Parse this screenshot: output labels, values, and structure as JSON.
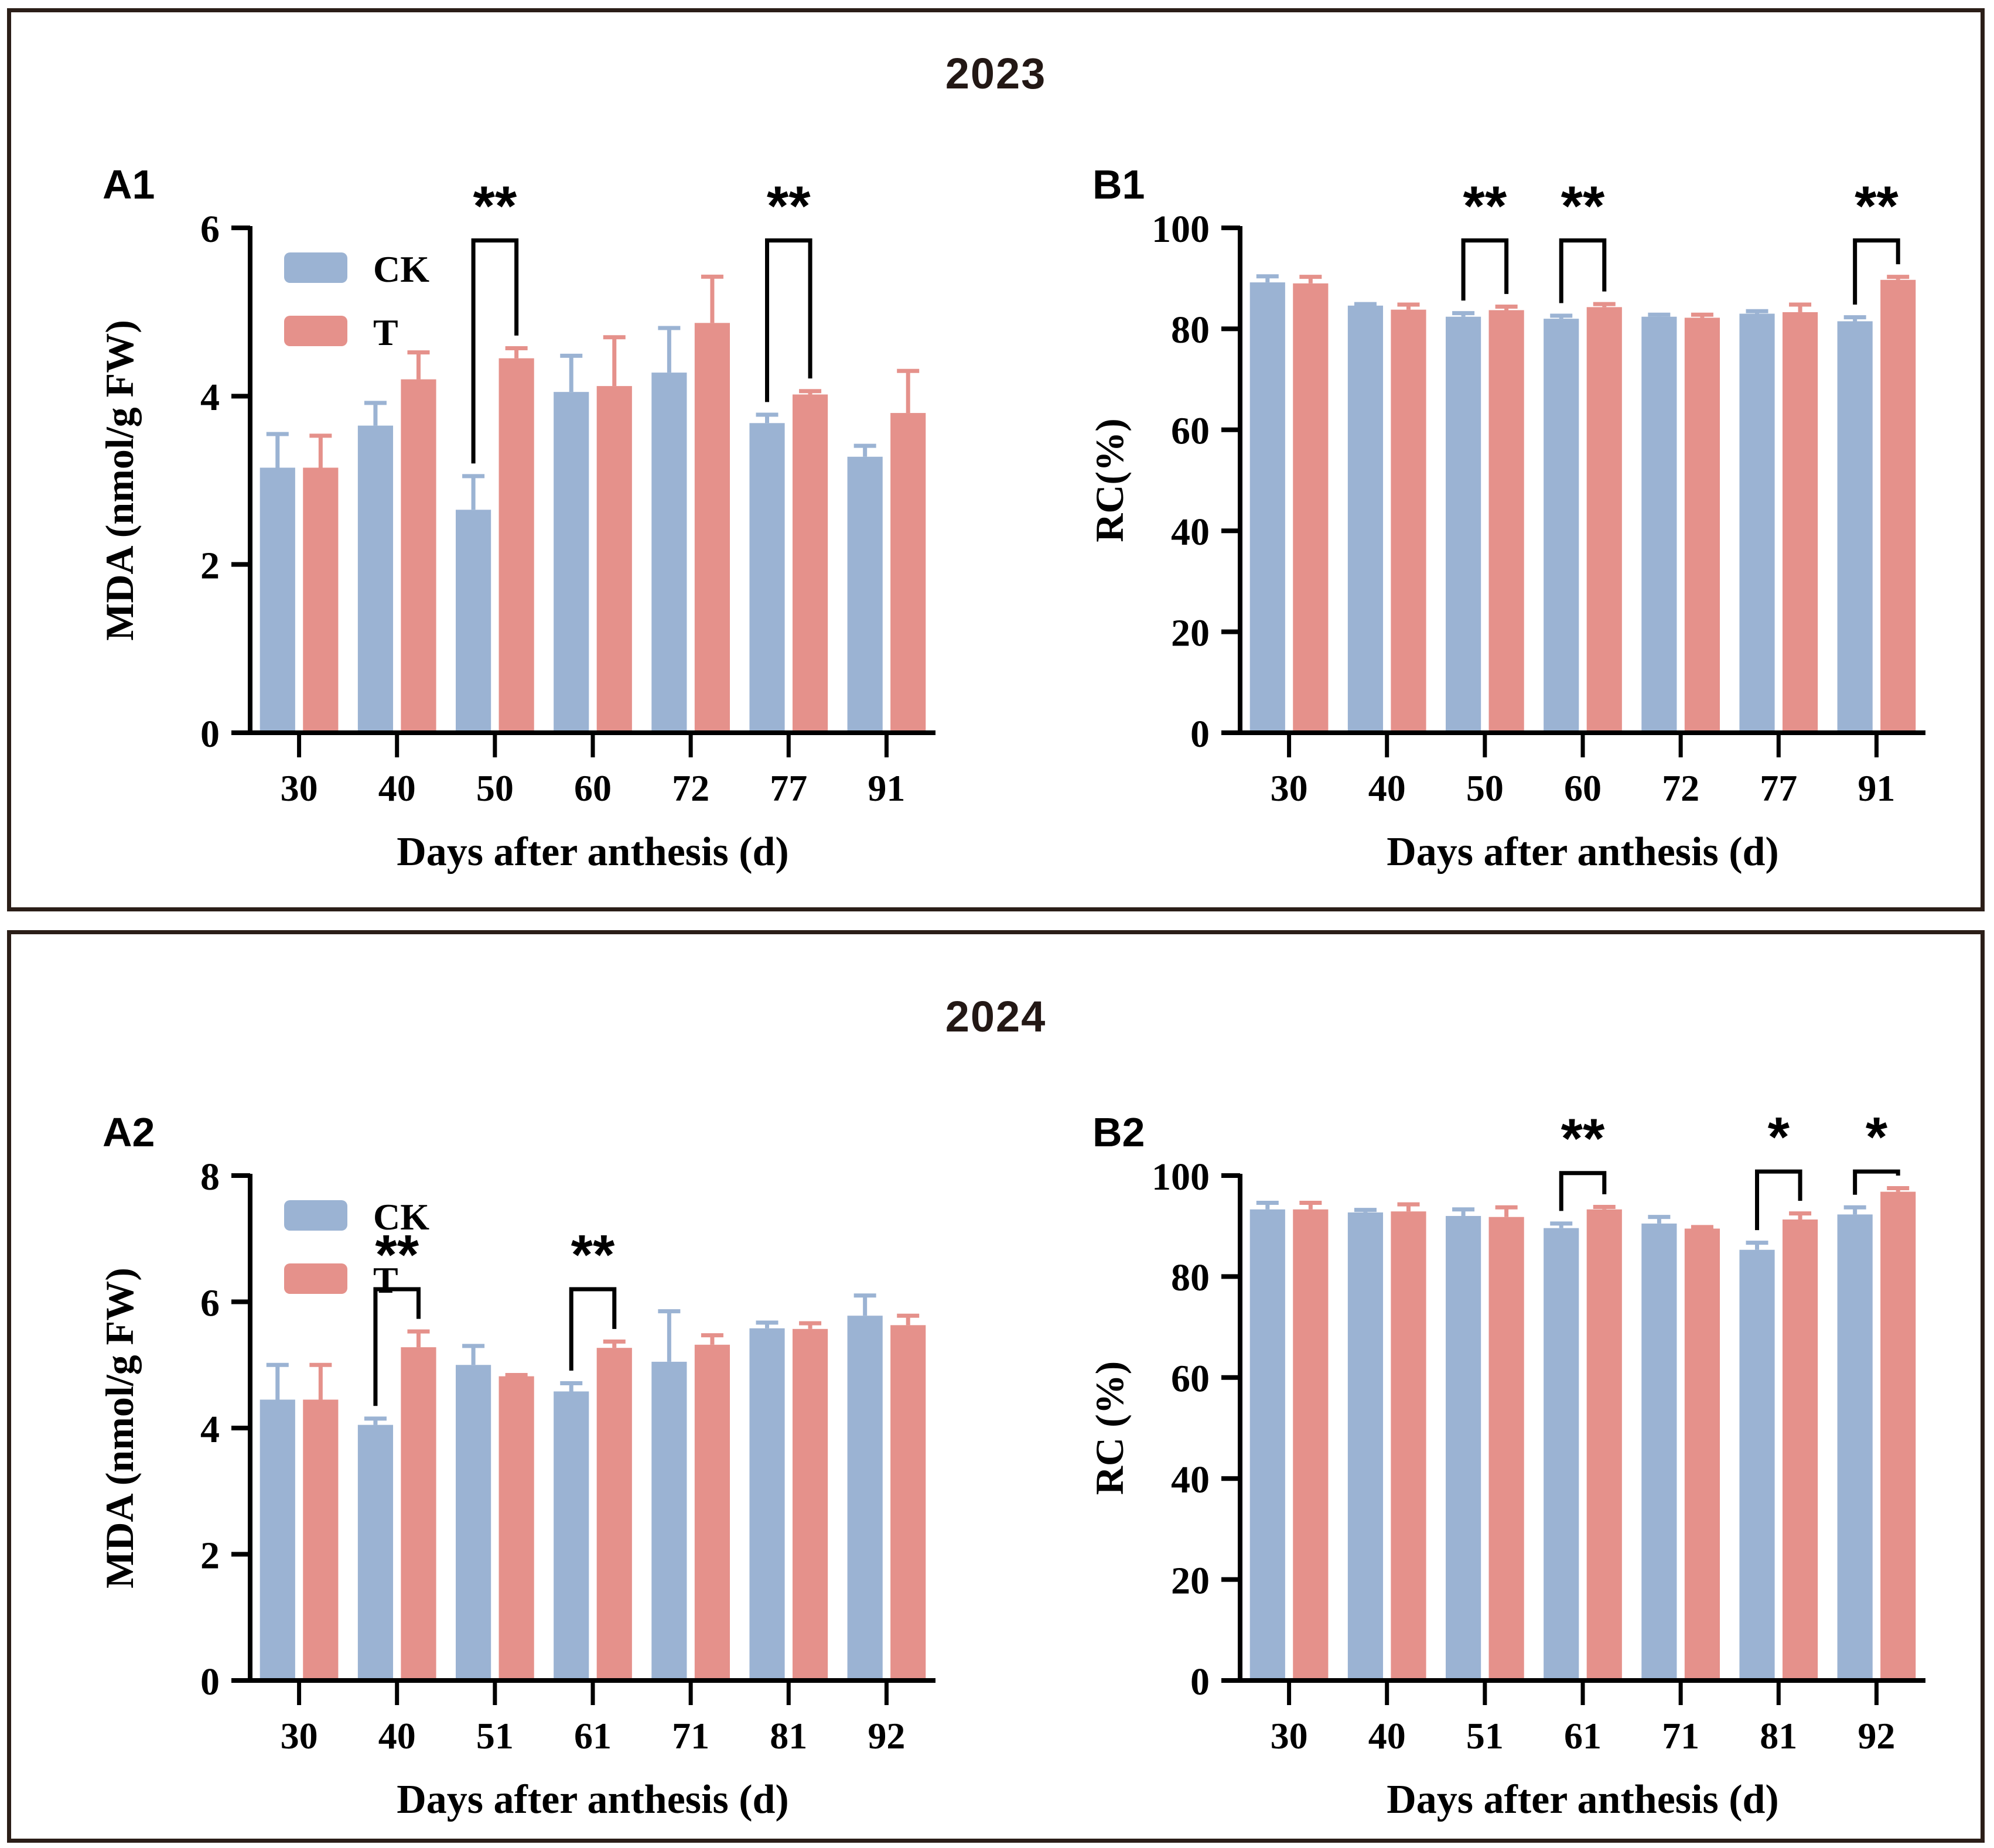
{
  "figure": {
    "colors": {
      "ck": "#9bb3d3",
      "t": "#e5918b",
      "axis": "#000000",
      "text": "#000000",
      "border": "#2b1e18",
      "title": "#231815",
      "background": "#ffffff"
    }
  },
  "panels": [
    {
      "year": "2023",
      "chart_ids": [
        "A1",
        "B1"
      ]
    },
    {
      "year": "2024",
      "chart_ids": [
        "A2",
        "B2"
      ]
    }
  ],
  "chart_data": [
    {
      "id": "A1",
      "panel_label": "A1",
      "type": "bar",
      "title": "",
      "ylabel": "MDA (nmol/g FW)",
      "xlabel": "Days after anthesis (d)",
      "ylim": [
        0,
        6
      ],
      "yticks": [
        0,
        2,
        4,
        6
      ],
      "categories": [
        "30",
        "40",
        "50",
        "60",
        "72",
        "77",
        "91"
      ],
      "grid": false,
      "legend": {
        "show": true,
        "position": "top-left",
        "entries": [
          "CK",
          "T"
        ]
      },
      "series": [
        {
          "name": "CK",
          "color_key": "ck",
          "values": [
            3.15,
            3.65,
            2.65,
            4.05,
            4.28,
            3.68,
            3.28
          ],
          "errors": [
            0.4,
            0.27,
            0.4,
            0.43,
            0.53,
            0.1,
            0.13
          ]
        },
        {
          "name": "T",
          "color_key": "t",
          "values": [
            3.15,
            4.2,
            4.45,
            4.12,
            4.87,
            4.02,
            3.8
          ],
          "errors": [
            0.38,
            0.32,
            0.12,
            0.58,
            0.55,
            0.04,
            0.5
          ]
        }
      ],
      "significance": [
        {
          "category": "50",
          "label": "**",
          "bracket_top": 5.85
        },
        {
          "category": "77",
          "label": "**",
          "bracket_top": 5.85
        }
      ]
    },
    {
      "id": "B1",
      "panel_label": "B1",
      "type": "bar",
      "title": "",
      "ylabel": "RC(%)",
      "xlabel": "Days after anthesis (d)",
      "ylim": [
        0,
        100
      ],
      "yticks": [
        0,
        20,
        40,
        60,
        80,
        100
      ],
      "categories": [
        "30",
        "40",
        "50",
        "60",
        "72",
        "77",
        "91"
      ],
      "grid": false,
      "legend": {
        "show": false,
        "position": "top-left",
        "entries": [
          "CK",
          "T"
        ]
      },
      "series": [
        {
          "name": "CK",
          "color_key": "ck",
          "values": [
            89.2,
            84.6,
            82.4,
            82.0,
            82.4,
            83.0,
            81.5
          ],
          "errors": [
            1.2,
            0.3,
            0.7,
            0.6,
            0.4,
            0.5,
            0.8
          ]
        },
        {
          "name": "T",
          "color_key": "t",
          "values": [
            89.0,
            83.8,
            83.7,
            84.3,
            82.2,
            83.3,
            89.7
          ],
          "errors": [
            1.3,
            1.0,
            0.7,
            0.6,
            0.6,
            1.5,
            0.6
          ]
        }
      ],
      "significance": [
        {
          "category": "50",
          "label": "**",
          "bracket_top": 97.5
        },
        {
          "category": "60",
          "label": "**",
          "bracket_top": 97.5
        },
        {
          "category": "91",
          "label": "**",
          "bracket_top": 97.5
        }
      ]
    },
    {
      "id": "A2",
      "panel_label": "A2",
      "type": "bar",
      "title": "",
      "ylabel": "MDA (nmol/g FW)",
      "xlabel": "Days after anthesis (d)",
      "ylim": [
        0,
        8
      ],
      "yticks": [
        0,
        2,
        4,
        6,
        8
      ],
      "categories": [
        "30",
        "40",
        "51",
        "61",
        "71",
        "81",
        "92"
      ],
      "grid": false,
      "legend": {
        "show": true,
        "position": "top-left",
        "entries": [
          "CK",
          "T"
        ]
      },
      "series": [
        {
          "name": "CK",
          "color_key": "ck",
          "values": [
            4.45,
            4.05,
            5.0,
            4.58,
            5.05,
            5.58,
            5.78
          ],
          "errors": [
            0.55,
            0.1,
            0.3,
            0.13,
            0.8,
            0.09,
            0.32
          ]
        },
        {
          "name": "T",
          "color_key": "t",
          "values": [
            4.45,
            5.28,
            4.82,
            5.27,
            5.32,
            5.57,
            5.63
          ],
          "errors": [
            0.55,
            0.25,
            0.02,
            0.1,
            0.15,
            0.09,
            0.15
          ]
        }
      ],
      "significance": [
        {
          "category": "40",
          "label": "**",
          "bracket_top": 6.2
        },
        {
          "category": "61",
          "label": "**",
          "bracket_top": 6.2
        }
      ]
    },
    {
      "id": "B2",
      "panel_label": "B2",
      "type": "bar",
      "title": "",
      "ylabel": "RC (%)",
      "xlabel": "Days after anthesis (d)",
      "ylim": [
        0,
        100
      ],
      "yticks": [
        0,
        20,
        40,
        60,
        80,
        100
      ],
      "categories": [
        "30",
        "40",
        "51",
        "61",
        "71",
        "81",
        "92"
      ],
      "grid": false,
      "legend": {
        "show": false,
        "position": "top-left",
        "entries": [
          "CK",
          "T"
        ]
      },
      "series": [
        {
          "name": "CK",
          "color_key": "ck",
          "values": [
            93.3,
            92.7,
            92.0,
            89.6,
            90.5,
            85.3,
            92.3
          ],
          "errors": [
            1.3,
            0.5,
            1.3,
            0.9,
            1.3,
            1.4,
            1.4
          ]
        },
        {
          "name": "T",
          "color_key": "t",
          "values": [
            93.3,
            92.9,
            91.8,
            93.3,
            89.5,
            91.3,
            96.8
          ],
          "errors": [
            1.3,
            1.4,
            1.9,
            0.5,
            0.3,
            1.2,
            0.7
          ]
        }
      ],
      "significance": [
        {
          "category": "61",
          "label": "**",
          "bracket_top": 100.5
        },
        {
          "category": "81",
          "label": "*",
          "bracket_top": 100.8
        },
        {
          "category": "92",
          "label": "*",
          "bracket_top": 100.8
        }
      ]
    }
  ]
}
